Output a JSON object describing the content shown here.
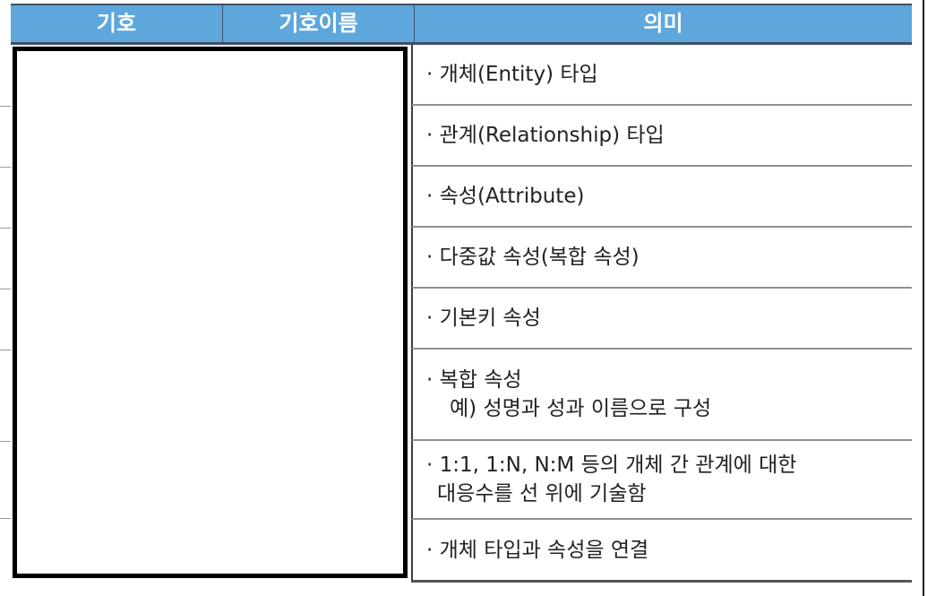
{
  "table": {
    "headers": [
      "기호",
      "기호이름",
      "의미"
    ],
    "rows": [
      {
        "lines": [
          "· 개체(Entity) 타입"
        ]
      },
      {
        "lines": [
          "· 관계(Relationship) 타입"
        ]
      },
      {
        "lines": [
          "· 속성(Attribute)"
        ]
      },
      {
        "lines": [
          "· 다중값 속성(복합 속성)"
        ]
      },
      {
        "lines": [
          "· 기본키 속성"
        ]
      },
      {
        "lines": [
          "· 복합 속성",
          "예) 성명과 성과 이름으로 구성"
        ]
      },
      {
        "lines": [
          "· 1:1, 1:N, N:M 등의 개체 간 관계에 대한",
          "대응수를 선 위에 기술함"
        ]
      },
      {
        "lines": [
          "· 개체 타입과 속성을 연결"
        ]
      }
    ]
  },
  "colors": {
    "header_bg": "#5ea7dc",
    "header_text": "#ffffff",
    "border_dark": "#3d4f66"
  }
}
